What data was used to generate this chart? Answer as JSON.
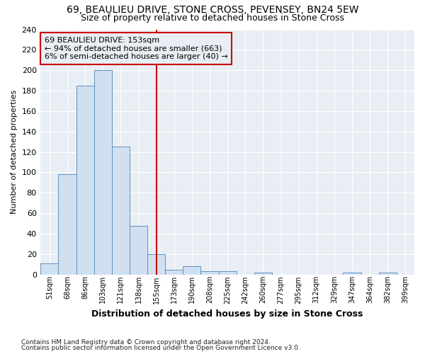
{
  "title_line1": "69, BEAULIEU DRIVE, STONE CROSS, PEVENSEY, BN24 5EW",
  "title_line2": "Size of property relative to detached houses in Stone Cross",
  "xlabel": "Distribution of detached houses by size in Stone Cross",
  "ylabel": "Number of detached properties",
  "bin_labels": [
    "51sqm",
    "68sqm",
    "86sqm",
    "103sqm",
    "121sqm",
    "138sqm",
    "155sqm",
    "173sqm",
    "190sqm",
    "208sqm",
    "225sqm",
    "242sqm",
    "260sqm",
    "277sqm",
    "295sqm",
    "312sqm",
    "329sqm",
    "347sqm",
    "364sqm",
    "382sqm",
    "399sqm"
  ],
  "bar_heights": [
    11,
    98,
    185,
    200,
    125,
    48,
    20,
    5,
    8,
    3,
    3,
    0,
    2,
    0,
    0,
    0,
    0,
    2,
    0,
    2,
    0
  ],
  "bar_color": "#d0e0f0",
  "bar_edge_color": "#6090c0",
  "vline_index": 6,
  "vline_color": "#cc0000",
  "box_edge_color": "#cc0000",
  "annotation_line1": "69 BEAULIEU DRIVE: 153sqm",
  "annotation_line2": "← 94% of detached houses are smaller (663)",
  "annotation_line3": "6% of semi-detached houses are larger (40) →",
  "ylim": [
    0,
    240
  ],
  "yticks": [
    0,
    20,
    40,
    60,
    80,
    100,
    120,
    140,
    160,
    180,
    200,
    220,
    240
  ],
  "footnote1": "Contains HM Land Registry data © Crown copyright and database right 2024.",
  "footnote2": "Contains public sector information licensed under the Open Government Licence v3.0.",
  "bg_color": "#ffffff",
  "plot_bg_color": "#e8eef4",
  "grid_color": "#ffffff"
}
